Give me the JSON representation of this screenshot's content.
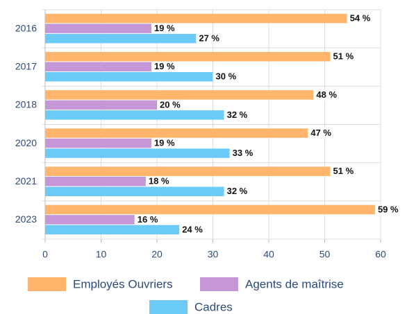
{
  "chart_data": {
    "type": "hbar",
    "categories": [
      "2016",
      "2017",
      "2018",
      "2020",
      "2021",
      "2023"
    ],
    "series": [
      {
        "name": "Employés Ouvriers",
        "color": "#ffb56b",
        "values": [
          54,
          51,
          48,
          47,
          51,
          59
        ],
        "value_labels": [
          "54 %",
          "51 %",
          "48 %",
          "47 %",
          "51 %",
          "59 %"
        ]
      },
      {
        "name": "Agents de maîtrise",
        "color": "#c597d6",
        "values": [
          19,
          19,
          20,
          19,
          18,
          16
        ],
        "value_labels": [
          "19 %",
          "19 %",
          "20 %",
          "19 %",
          "18 %",
          "16 %"
        ]
      },
      {
        "name": "Cadres",
        "color": "#6ccaf8",
        "values": [
          27,
          30,
          32,
          33,
          32,
          24
        ],
        "value_labels": [
          "27 %",
          "30 %",
          "32 %",
          "33 %",
          "32 %",
          "24 %"
        ]
      }
    ],
    "xlim": [
      0,
      60
    ],
    "xticks": [
      0,
      10,
      20,
      30,
      40,
      50,
      60
    ],
    "grid": true,
    "legend": "bottom"
  }
}
